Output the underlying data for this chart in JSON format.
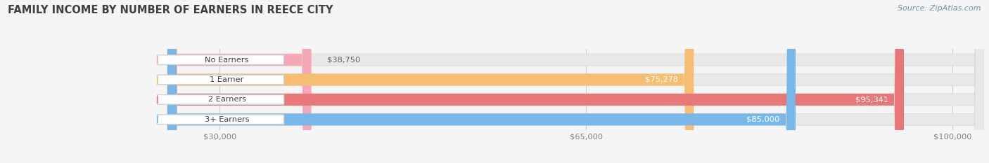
{
  "title": "FAMILY INCOME BY NUMBER OF EARNERS IN REECE CITY",
  "source": "Source: ZipAtlas.com",
  "categories": [
    "No Earners",
    "1 Earner",
    "2 Earners",
    "3+ Earners"
  ],
  "values": [
    38750,
    75278,
    95341,
    85000
  ],
  "bar_colors": [
    "#f5a8b8",
    "#f5be72",
    "#e87878",
    "#78b8e8"
  ],
  "value_labels": [
    "$38,750",
    "$75,278",
    "$95,341",
    "$85,000"
  ],
  "x_min": 25000,
  "x_max": 103000,
  "x_ticks": [
    30000,
    65000,
    100000
  ],
  "x_tick_labels": [
    "$30,000",
    "$65,000",
    "$100,000"
  ],
  "background_color": "#f5f5f5",
  "bar_bg_color": "#e8e8e8",
  "title_color": "#404040",
  "source_color": "#7090a0",
  "tick_label_color": "#808080",
  "pill_color": "#ffffff",
  "pill_border_color": "#d0d0d0",
  "pill_dot_colors": [
    "#f5a8b8",
    "#f5be72",
    "#e87878",
    "#78b8e8"
  ],
  "label_inside_color": "#ffffff",
  "label_outside_color": "#606060"
}
